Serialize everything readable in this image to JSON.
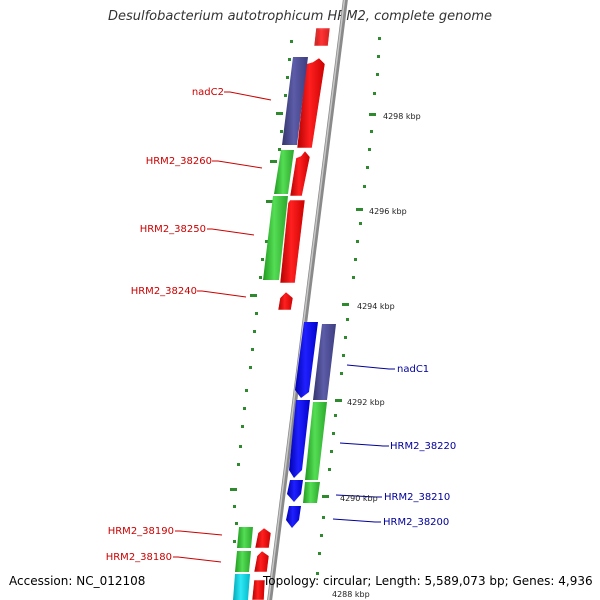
{
  "title": "Desulfobacterium autotrophicum HRM2, complete genome",
  "footer": {
    "accession": "Accession: NC_012108",
    "topology": "Topology: circular; Length: 5,589,073 bp; Genes: 4,936"
  },
  "colors": {
    "left_label": "#cc0000",
    "right_label": "#00009a",
    "red_gene": "#ff0000",
    "green_gene": "#33cc33",
    "blue_gene": "#0000ee",
    "purple_gene": "#4b4b96",
    "cyan_gene": "#00d0e0",
    "backbone": "#8a8a8a",
    "tick": "#2f8a2f"
  },
  "labels": {
    "left": [
      "nadC2",
      "HRM2_38260",
      "HRM2_38250",
      "HRM2_38240",
      "HRM2_38190",
      "HRM2_38180"
    ],
    "right": [
      "nadC1",
      "HRM2_38220",
      "HRM2_38210",
      "HRM2_38200"
    ]
  },
  "scale_labels": [
    "4298 kbp",
    "4296 kbp",
    "4294 kbp",
    "4292 kbp",
    "4290 kbp",
    "4288 kbp"
  ]
}
